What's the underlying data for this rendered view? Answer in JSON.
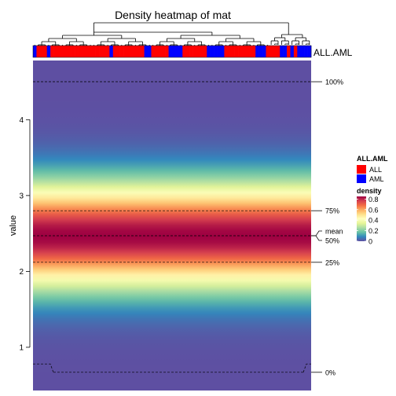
{
  "chart_data": {
    "type": "heatmap",
    "title": "Density heatmap of mat",
    "ylabel": "value",
    "ylim": [
      0.43,
      4.78
    ],
    "yticks": [
      1,
      2,
      3,
      4
    ],
    "column_annotation": {
      "name": "ALL.AML",
      "legend_title": "ALL.AML",
      "levels": [
        {
          "label": "ALL",
          "color": "#FF0000"
        },
        {
          "label": "AML",
          "color": "#0000FF"
        }
      ],
      "sequence": [
        "AML",
        "ALL",
        "ALL",
        "ALL",
        "AML",
        "ALL",
        "ALL",
        "ALL",
        "ALL",
        "ALL",
        "ALL",
        "ALL",
        "ALL",
        "ALL",
        "ALL",
        "ALL",
        "ALL",
        "ALL",
        "ALL",
        "ALL",
        "ALL",
        "ALL",
        "AML",
        "ALL",
        "ALL",
        "ALL",
        "ALL",
        "ALL",
        "ALL",
        "ALL",
        "ALL",
        "ALL",
        "AML",
        "AML",
        "ALL",
        "ALL",
        "ALL",
        "ALL",
        "ALL",
        "AML",
        "AML",
        "AML",
        "AML",
        "ALL",
        "ALL",
        "ALL",
        "ALL",
        "ALL",
        "ALL",
        "ALL",
        "AML",
        "AML",
        "AML",
        "AML",
        "AML",
        "ALL",
        "ALL",
        "ALL",
        "ALL",
        "ALL",
        "ALL",
        "ALL",
        "ALL",
        "ALL",
        "AML",
        "AML",
        "AML",
        "ALL",
        "ALL",
        "ALL",
        "ALL",
        "AML",
        "AML",
        "ALL",
        "AML",
        "ALL",
        "AML",
        "AML",
        "AML",
        "AML"
      ]
    },
    "density_legend": {
      "title": "density",
      "ticks": [
        0,
        0.2,
        0.4,
        0.6,
        0.8
      ],
      "range": [
        0,
        0.85
      ],
      "colors": [
        "#5E4FA2",
        "#3288BD",
        "#66C2A5",
        "#ABDDA4",
        "#E6F598",
        "#FFFFBF",
        "#FEE08B",
        "#FDAE61",
        "#F46D43",
        "#D53E4F",
        "#9E0142"
      ]
    },
    "density_profile": {
      "mean": 2.47,
      "sd": 0.47,
      "peak": 0.85
    },
    "quantiles": [
      {
        "label": "100%",
        "value": 4.5
      },
      {
        "label": "75%",
        "value": 2.8
      },
      {
        "label": "50%",
        "value": 2.47
      },
      {
        "label": "mean",
        "value": 2.47
      },
      {
        "label": "25%",
        "value": 2.12
      },
      {
        "label": "0%",
        "value": 0.67
      }
    ]
  }
}
